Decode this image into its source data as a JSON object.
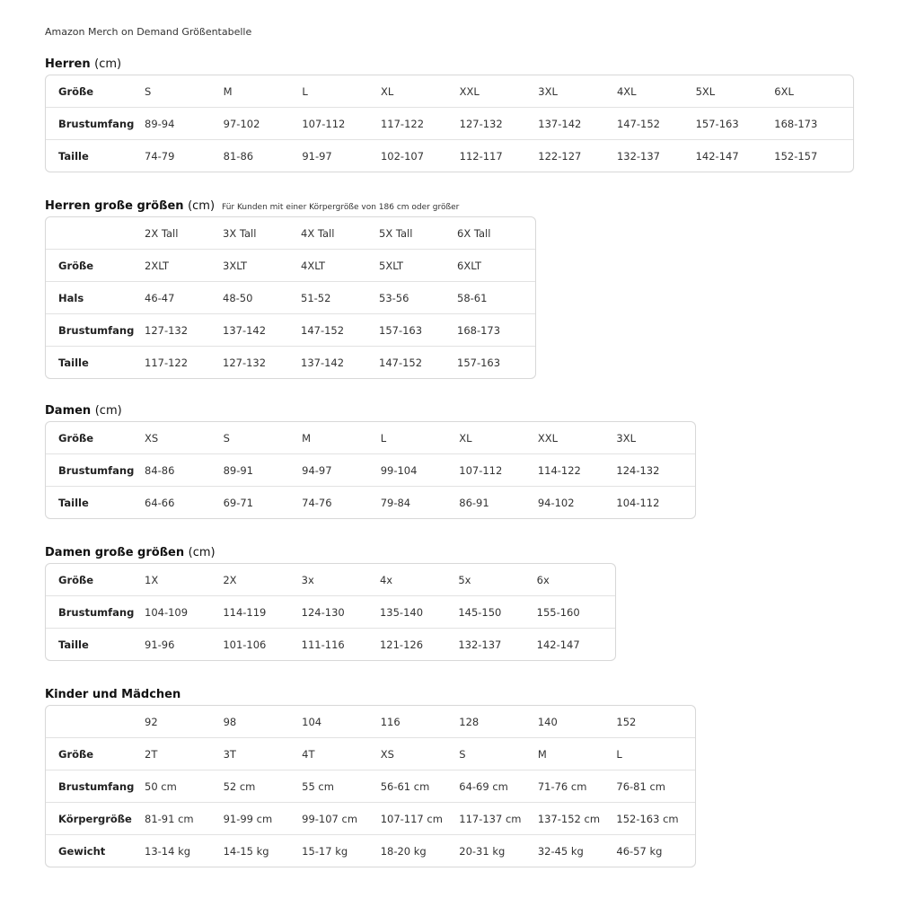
{
  "title": "Amazon Merch on Demand Größentabelle",
  "sections": [
    {
      "heading": "Herren",
      "unit": "(cm)",
      "note": "",
      "rows": [
        {
          "label": "Größe",
          "values": [
            "S",
            "M",
            "L",
            "XL",
            "XXL",
            "3XL",
            "4XL",
            "5XL",
            "6XL"
          ]
        },
        {
          "label": "Brustumfang",
          "values": [
            "89-94",
            "97-102",
            "107-112",
            "117-122",
            "127-132",
            "137-142",
            "147-152",
            "157-163",
            "168-173"
          ]
        },
        {
          "label": "Taille",
          "values": [
            "74-79",
            "81-86",
            "91-97",
            "102-107",
            "112-117",
            "122-127",
            "132-137",
            "142-147",
            "152-157"
          ]
        }
      ]
    },
    {
      "heading": "Herren große größen",
      "unit": "(cm)",
      "note": "Für Kunden mit einer Körpergröße von 186 cm oder größer",
      "rows": [
        {
          "label": "",
          "values": [
            "2X Tall",
            "3X Tall",
            "4X Tall",
            "5X Tall",
            "6X Tall"
          ]
        },
        {
          "label": "Größe",
          "values": [
            "2XLT",
            "3XLT",
            "4XLT",
            "5XLT",
            "6XLT"
          ]
        },
        {
          "label": "Hals",
          "values": [
            "46-47",
            "48-50",
            "51-52",
            "53-56",
            "58-61"
          ]
        },
        {
          "label": "Brustumfang",
          "values": [
            "127-132",
            "137-142",
            "147-152",
            "157-163",
            "168-173"
          ]
        },
        {
          "label": "Taille",
          "values": [
            "117-122",
            "127-132",
            "137-142",
            "147-152",
            "157-163"
          ]
        }
      ]
    },
    {
      "heading": "Damen",
      "unit": "(cm)",
      "note": "",
      "rows": [
        {
          "label": "Größe",
          "values": [
            "XS",
            "S",
            "M",
            "L",
            "XL",
            "XXL",
            "3XL"
          ]
        },
        {
          "label": "Brustumfang",
          "values": [
            "84-86",
            "89-91",
            "94-97",
            "99-104",
            "107-112",
            "114-122",
            "124-132"
          ]
        },
        {
          "label": "Taille",
          "values": [
            "64-66",
            "69-71",
            "74-76",
            "79-84",
            "86-91",
            "94-102",
            "104-112"
          ]
        }
      ]
    },
    {
      "heading": "Damen große größen",
      "unit": "(cm)",
      "note": "",
      "rows": [
        {
          "label": "Größe",
          "values": [
            "1X",
            "2X",
            "3x",
            "4x",
            "5x",
            "6x"
          ]
        },
        {
          "label": "Brustumfang",
          "values": [
            "104-109",
            "114-119",
            "124-130",
            "135-140",
            "145-150",
            "155-160"
          ]
        },
        {
          "label": "Taille",
          "values": [
            "91-96",
            "101-106",
            "111-116",
            "121-126",
            "132-137",
            "142-147"
          ]
        }
      ]
    },
    {
      "heading": "Kinder und Mädchen",
      "unit": "",
      "note": "",
      "rows": [
        {
          "label": "",
          "values": [
            "92",
            "98",
            "104",
            "116",
            "128",
            "140",
            "152"
          ]
        },
        {
          "label": "Größe",
          "values": [
            "2T",
            "3T",
            "4T",
            "XS",
            "S",
            "M",
            "L"
          ]
        },
        {
          "label": "Brustumfang",
          "values": [
            "50 cm",
            "52 cm",
            "55 cm",
            "56-61 cm",
            "64-69 cm",
            "71-76 cm",
            "76-81 cm"
          ]
        },
        {
          "label": "Körpergröße",
          "values": [
            "81-91 cm",
            "91-99 cm",
            "99-107 cm",
            "107-117 cm",
            "117-137 cm",
            "137-152 cm",
            "152-163 cm"
          ]
        },
        {
          "label": "Gewicht",
          "values": [
            "13-14 kg",
            "14-15 kg",
            "15-17 kg",
            "18-20 kg",
            "20-31 kg",
            "32-45 kg",
            "46-57 kg"
          ]
        }
      ]
    }
  ]
}
